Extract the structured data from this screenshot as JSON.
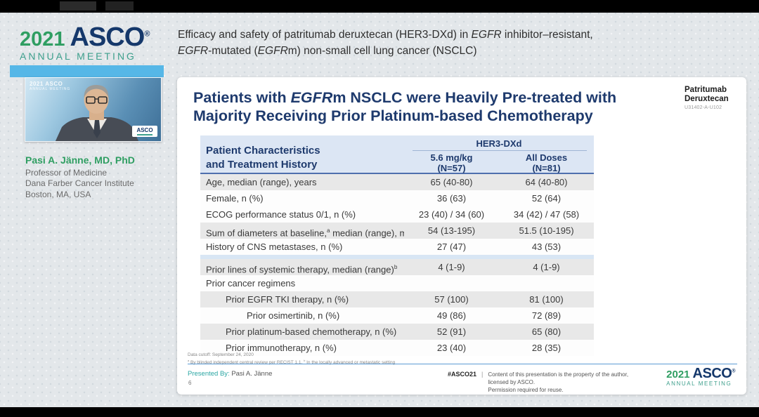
{
  "logo_top": {
    "year": "2021",
    "name": "ASCO",
    "registered": "®",
    "subtitle": "ANNUAL MEETING"
  },
  "header_title": {
    "l1a": "Efficacy and safety of patritumab deruxtecan (HER3-DXd) in ",
    "l1b": "EGFR",
    "l1c": " inhibitor–resistant,",
    "l2a": "EGFR",
    "l2b": "-mutated (",
    "l2c": "EGFR",
    "l2d": "m) non-small cell lung cancer (NSCLC)"
  },
  "speaker": {
    "video_watermark_line1": "2021 ASCO",
    "video_watermark_line2": "ANNUAL MEETING",
    "video_badge": "ASCO",
    "name": "Pasi A. Jänne, MD, PhD",
    "role": "Professor of Medicine",
    "institution": "Dana Farber Cancer Institute",
    "location": "Boston, MA, USA"
  },
  "slide": {
    "drug_label_line1": "Patritumab",
    "drug_label_line2": "Deruxtecan",
    "study_code": "U31402-A-U102",
    "title": {
      "a": "Patients with ",
      "b": "EGFR",
      "c": "m NSCLC were Heavily Pre-treated with",
      "d": "Majority Receiving Prior Platinum-based Chemotherapy"
    },
    "table": {
      "row_header_line1": "Patient Characteristics",
      "row_header_line2": "and Treatment History",
      "group_header": "HER3-DXd",
      "columns": [
        {
          "dose": "5.6 mg/kg",
          "n": "(N=57)"
        },
        {
          "dose": "All Doses",
          "n": "(N=81)"
        }
      ],
      "rows": [
        {
          "label": "Age, median (range), years",
          "sup": "",
          "label2": "",
          "v1": "65 (40-80)",
          "v2": "64 (40-80)",
          "indent": 0,
          "shaded": true,
          "section_break": false
        },
        {
          "label": "Female, n (%)",
          "sup": "",
          "label2": "",
          "v1": "36 (63)",
          "v2": "52 (64)",
          "indent": 0,
          "shaded": false,
          "section_break": false
        },
        {
          "label": "ECOG performance status 0/1, n (%)",
          "sup": "",
          "label2": "",
          "v1": "23 (40) / 34 (60)",
          "v2": "34 (42) / 47 (58)",
          "indent": 0,
          "shaded": false,
          "section_break": false
        },
        {
          "label": "Sum of diameters at baseline,",
          "sup": "a",
          "label2": " median (range), mm",
          "v1": "54 (13-195)",
          "v2": "51.5 (10-195)",
          "indent": 0,
          "shaded": true,
          "section_break": false
        },
        {
          "label": "History of CNS metastases, n (%)",
          "sup": "",
          "label2": "",
          "v1": "27 (47)",
          "v2": "43 (53)",
          "indent": 0,
          "shaded": false,
          "section_break": false
        },
        {
          "label": "Prior lines of systemic therapy, median (range)",
          "sup": "b",
          "label2": "",
          "v1": "4 (1-9)",
          "v2": "4 (1-9)",
          "indent": 0,
          "shaded": true,
          "section_break": true
        },
        {
          "label": "Prior cancer regimens",
          "sup": "",
          "label2": "",
          "v1": "",
          "v2": "",
          "indent": 0,
          "shaded": false,
          "section_break": false
        },
        {
          "label": "Prior EGFR TKI therapy, n (%)",
          "sup": "",
          "label2": "",
          "v1": "57 (100)",
          "v2": "81 (100)",
          "indent": 1,
          "shaded": true,
          "section_break": false
        },
        {
          "label": "Prior osimertinib, n (%)",
          "sup": "",
          "label2": "",
          "v1": "49 (86)",
          "v2": "72 (89)",
          "indent": 2,
          "shaded": false,
          "section_break": false
        },
        {
          "label": "Prior platinum-based chemotherapy, n (%)",
          "sup": "",
          "label2": "",
          "v1": "52 (91)",
          "v2": "65 (80)",
          "indent": 1,
          "shaded": true,
          "section_break": false
        },
        {
          "label": "Prior immunotherapy, n (%)",
          "sup": "",
          "label2": "",
          "v1": "23 (40)",
          "v2": "28 (35)",
          "indent": 1,
          "shaded": false,
          "section_break": false
        }
      ]
    },
    "footnotes": {
      "cutoff": "Data cutoff: September 24, 2020",
      "note_a_sup": "a",
      "note_a": " By blinded independent central review per RECIST 1.1. ",
      "note_b_sup": "b",
      "note_b": " In the locally advanced or metastatic setting"
    },
    "footer": {
      "presented_by_label": "Presented By: ",
      "presenter": "Pasi A. Jänne",
      "slide_number": "6",
      "hashtag": "#ASCO21",
      "divider": "|",
      "license1": "Content of this presentation is the property of the author, licensed by ASCO.",
      "license2": "Permission required for reuse."
    }
  },
  "logo_bottom": {
    "year": "2021",
    "name": "ASCO",
    "registered": "®",
    "subtitle": "ANNUAL MEETING"
  },
  "colors": {
    "navy": "#1e3a6d",
    "green": "#2f9e62",
    "teal": "#3d9f8c",
    "light_blue_strip": "#56b7e7",
    "table_header_bg": "#dce6f4",
    "row_shade": "#e8e8e8",
    "section_separator": "#d8e6f4",
    "presented_by_teal": "#2aa6a3",
    "rule_blue": "#5b9bd5"
  }
}
